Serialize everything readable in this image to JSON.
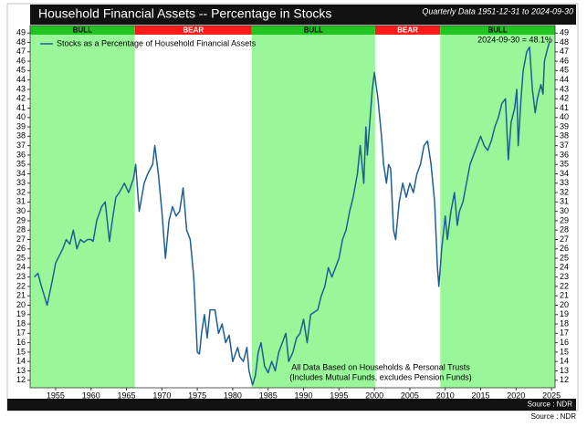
{
  "chart_data": {
    "type": "line",
    "title": "Household Financial Assets -- Percentage in Stocks",
    "subtitle": "Quarterly Data 1951-12-31 to 2024-09-30",
    "annotation": "2024-09-30 = 48.1%",
    "notes": [
      "All Data Based on Households & Personal Trusts",
      "(Includes Mutual Funds, excludes Pension Funds)"
    ],
    "source_bar": "Source : NDR",
    "source": "Source : NDR",
    "regions": [
      {
        "label": "BULL",
        "start": 1951.4,
        "end": 1966.2,
        "color": "#99f799",
        "header_color": "#22c422"
      },
      {
        "label": "BEAR",
        "start": 1966.2,
        "end": 1982.7,
        "color": "#ffffff",
        "header_color": "#ff1a1a"
      },
      {
        "label": "BULL",
        "start": 1982.7,
        "end": 2000.1,
        "color": "#99f799",
        "header_color": "#22c422"
      },
      {
        "label": "BEAR",
        "start": 2000.1,
        "end": 2009.3,
        "color": "#ffffff",
        "header_color": "#ff1a1a"
      },
      {
        "label": "BULL",
        "start": 2009.3,
        "end": 2025.5,
        "color": "#99f799",
        "header_color": "#22c422"
      }
    ],
    "x": [
      1952,
      1952.5,
      1953,
      1953.8,
      1954.5,
      1955,
      1956,
      1956.5,
      1957,
      1957.5,
      1958,
      1958.5,
      1959,
      1959.5,
      1960,
      1960.3,
      1960.8,
      1961.5,
      1962,
      1962.6,
      1963,
      1963.5,
      1964,
      1964.7,
      1965.3,
      1966,
      1966.3,
      1966.8,
      1967.5,
      1968,
      1968.7,
      1969,
      1969.5,
      1970,
      1970.5,
      1971,
      1971.5,
      1972,
      1972.5,
      1973,
      1973.5,
      1974,
      1974.5,
      1975,
      1975.3,
      1975.6,
      1976,
      1976.4,
      1976.8,
      1977.5,
      1978,
      1978.5,
      1979,
      1979.5,
      1980,
      1980.7,
      1981,
      1981.5,
      1982,
      1982.3,
      1982.8,
      1983.2,
      1983.6,
      1984,
      1984.5,
      1985,
      1985.5,
      1986,
      1986.5,
      1987,
      1987.5,
      1987.9,
      1988.5,
      1989,
      1989.5,
      1990,
      1990.5,
      1991,
      1992,
      1992.5,
      1993,
      1993.5,
      1994,
      1994.5,
      1995,
      1995.5,
      1996,
      1996.5,
      1997,
      1997.6,
      1998,
      1998.5,
      1998.8,
      1999,
      1999.3,
      1999.7,
      2000,
      2000.5,
      2001,
      2001.3,
      2001.7,
      2002,
      2002.3,
      2002.7,
      2003,
      2003.5,
      2004,
      2004.5,
      2005,
      2005.5,
      2006,
      2006.5,
      2007,
      2007.5,
      2008,
      2008.5,
      2008.9,
      2009.1,
      2009.5,
      2010,
      2010.3,
      2010.8,
      2011.3,
      2011.7,
      2012,
      2012.5,
      2013,
      2013.5,
      2014,
      2014.5,
      2015,
      2015.5,
      2016,
      2016.5,
      2017,
      2017.5,
      2018,
      2018.5,
      2018.9,
      2019.3,
      2019.8,
      2020.1,
      2020.3,
      2020.7,
      2021,
      2021.5,
      2021.9,
      2022.3,
      2022.7,
      2023,
      2023.5,
      2023.8,
      2024,
      2024.5,
      2024.75
    ],
    "series": [
      {
        "name": "Stocks as a Percentage of Household Financial Assets",
        "color": "#1d5f94",
        "values": [
          23,
          23.4,
          22,
          20,
          22.5,
          24.5,
          26,
          27,
          26.5,
          28,
          26,
          27,
          26.7,
          27,
          27,
          26.8,
          29,
          30.5,
          31,
          26.8,
          29,
          31.5,
          32,
          33,
          32,
          33.5,
          35,
          30,
          33,
          34,
          35,
          37,
          34,
          30,
          25,
          29,
          30.5,
          29.5,
          30,
          32.5,
          28,
          27,
          23,
          15,
          14.8,
          17,
          19,
          16.5,
          19.5,
          19.5,
          17,
          18,
          16,
          16.8,
          14,
          15.5,
          14.5,
          14,
          15.5,
          13,
          11.5,
          12.5,
          15,
          16,
          13.5,
          12.8,
          14,
          13,
          15,
          16,
          17,
          14,
          15,
          16.5,
          17,
          18.5,
          16,
          19,
          19.5,
          21,
          22,
          24,
          23,
          24,
          25,
          27,
          28,
          30,
          31.5,
          34,
          37,
          33,
          39,
          36,
          39,
          43,
          44.8,
          42,
          38,
          35,
          33,
          35,
          34.5,
          28,
          27,
          31,
          33,
          31.5,
          33,
          32,
          34,
          35,
          37,
          37.5,
          35,
          31,
          24,
          22,
          26,
          29.5,
          27,
          30,
          32,
          28.5,
          30,
          31,
          33,
          35,
          36,
          37,
          38,
          37,
          36.5,
          37.5,
          39,
          40,
          41.5,
          42,
          35.5,
          39.5,
          41,
          43,
          37,
          42,
          45,
          47,
          47.5,
          43,
          40.5,
          42,
          43.5,
          42.5,
          46,
          47.5,
          48.1
        ]
      }
    ],
    "xlim": [
      1951.4,
      2025.5
    ],
    "xticks": [
      1955,
      1960,
      1965,
      1970,
      1975,
      1980,
      1985,
      1990,
      1995,
      2000,
      2005,
      2010,
      2015,
      2020,
      2025
    ],
    "ylim": [
      11.2,
      49.8
    ],
    "yticks": [
      12,
      13,
      14,
      15,
      16,
      17,
      18,
      19,
      20,
      21,
      22,
      23,
      24,
      25,
      26,
      27,
      28,
      29,
      30,
      31,
      32,
      33,
      34,
      35,
      36,
      37,
      38,
      39,
      40,
      41,
      42,
      43,
      44,
      45,
      46,
      47,
      48,
      49
    ]
  }
}
